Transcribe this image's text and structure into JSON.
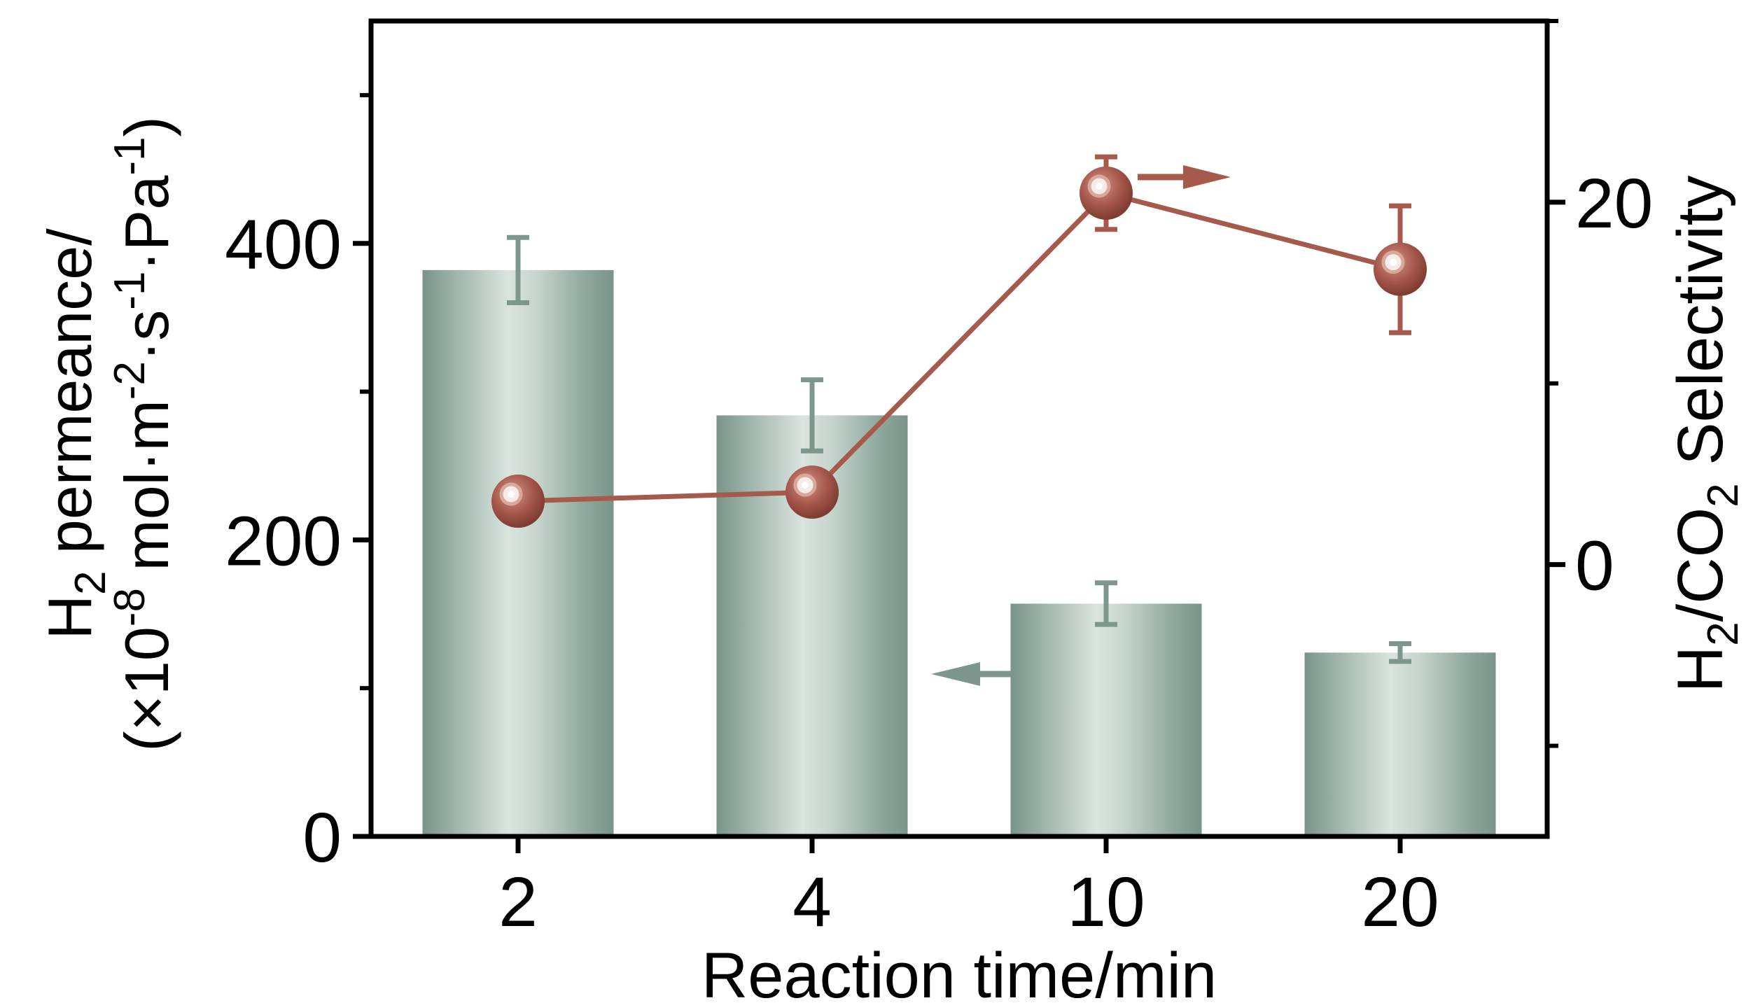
{
  "chart_data": {
    "type": "bar",
    "categories": [
      "2",
      "4",
      "10",
      "20"
    ],
    "xlabel": "Reaction time/min",
    "series": [
      {
        "name": "H2 permeance",
        "kind": "bar",
        "axis": "left",
        "values": [
          382,
          284,
          157,
          124
        ],
        "errors": [
          22,
          24,
          14,
          6
        ],
        "color": "#7d978d"
      },
      {
        "name": "H2/CO2 Selectivity",
        "kind": "line",
        "axis": "right",
        "values": [
          3.5,
          4.0,
          20.5,
          16.3
        ],
        "errors": [
          1.0,
          0.5,
          2.0,
          3.5
        ],
        "color": "#a55a4c"
      }
    ],
    "left_axis": {
      "ylim": [
        0,
        550
      ],
      "ticks": [
        0,
        200,
        400
      ],
      "tick_labels": [
        "0",
        "200",
        "400"
      ],
      "minor_ticks": [
        100,
        300,
        500
      ],
      "label": {
        "line1_main": "H",
        "line1_sub": "2",
        "line1_rest": " permeance/",
        "line2_a": "(×10",
        "line2_sup_a": "-8",
        "line2_b": " mol·m",
        "line2_sup_b": "-2",
        "line2_c": "·s",
        "line2_sup_c": "-1",
        "line2_d": "·Pa",
        "line2_sup_d": "-1",
        "line2_e": ")"
      }
    },
    "right_axis": {
      "ylim": [
        -15,
        30
      ],
      "ticks": [
        0,
        20
      ],
      "tick_labels": [
        "0",
        "20"
      ],
      "minor_ticks": [
        -10,
        10,
        30
      ],
      "label": {
        "a": "H",
        "sub_a": "2",
        "b": "/CO",
        "sub_b": "2",
        "c": " Selectivity"
      }
    },
    "indicator_arrows": [
      {
        "points_to": "left axis",
        "near_category": "10"
      },
      {
        "points_to": "right axis",
        "near_category": "10"
      }
    ]
  }
}
